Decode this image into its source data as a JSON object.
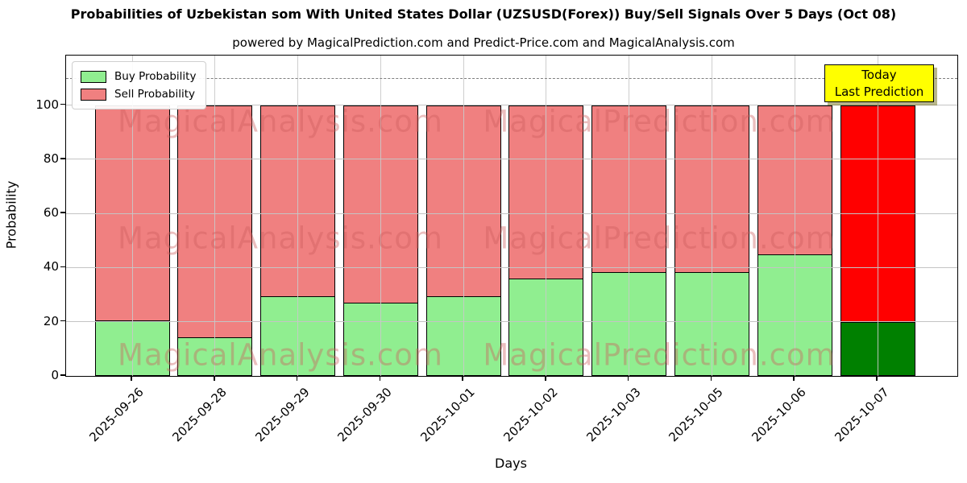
{
  "title": "Probabilities of Uzbekistan som With United States Dollar (UZSUSD(Forex)) Buy/Sell Signals Over 5 Days (Oct 08)",
  "subtitle": "powered by MagicalPrediction.com and Predict-Price.com and MagicalAnalysis.com",
  "chart_data": {
    "type": "bar",
    "stacked": true,
    "title": "Probabilities of Uzbekistan som With United States Dollar (UZSUSD(Forex)) Buy/Sell Signals Over 5 Days (Oct 08)",
    "subtitle": "powered by MagicalPrediction.com and Predict-Price.com and MagicalAnalysis.com",
    "xlabel": "Days",
    "ylabel": "Probability",
    "categories": [
      "2025-09-26",
      "2025-09-28",
      "2025-09-29",
      "2025-09-30",
      "2025-10-01",
      "2025-10-02",
      "2025-10-03",
      "2025-10-05",
      "2025-10-06",
      "2025-10-07"
    ],
    "series": [
      {
        "name": "Buy Probability",
        "values": [
          20.5,
          14.5,
          29.5,
          27,
          29.5,
          36,
          38.5,
          38.5,
          45,
          20
        ],
        "color": "#90EE90",
        "today_color": "#008000"
      },
      {
        "name": "Sell Probability",
        "values": [
          79.5,
          85.5,
          70.5,
          73,
          70.5,
          64,
          61.5,
          61.5,
          55,
          80
        ],
        "color": "#F08080",
        "today_color": "#FF0000"
      }
    ],
    "ylim": [
      0,
      118.3
    ],
    "yticks": [
      0,
      20,
      40,
      60,
      80,
      100
    ],
    "grid": true,
    "dashed_line_y": 110,
    "legend": {
      "position": "upper-left",
      "entries": [
        "Buy Probability",
        "Sell Probability"
      ]
    },
    "annotation": {
      "lines": [
        "Today",
        "Last Prediction"
      ],
      "bg_color": "#FFFF00",
      "applies_to": "2025-10-07"
    },
    "watermarks": {
      "left": "MagicalAnalysis.com",
      "right": "MagicalPrediction.com"
    }
  }
}
